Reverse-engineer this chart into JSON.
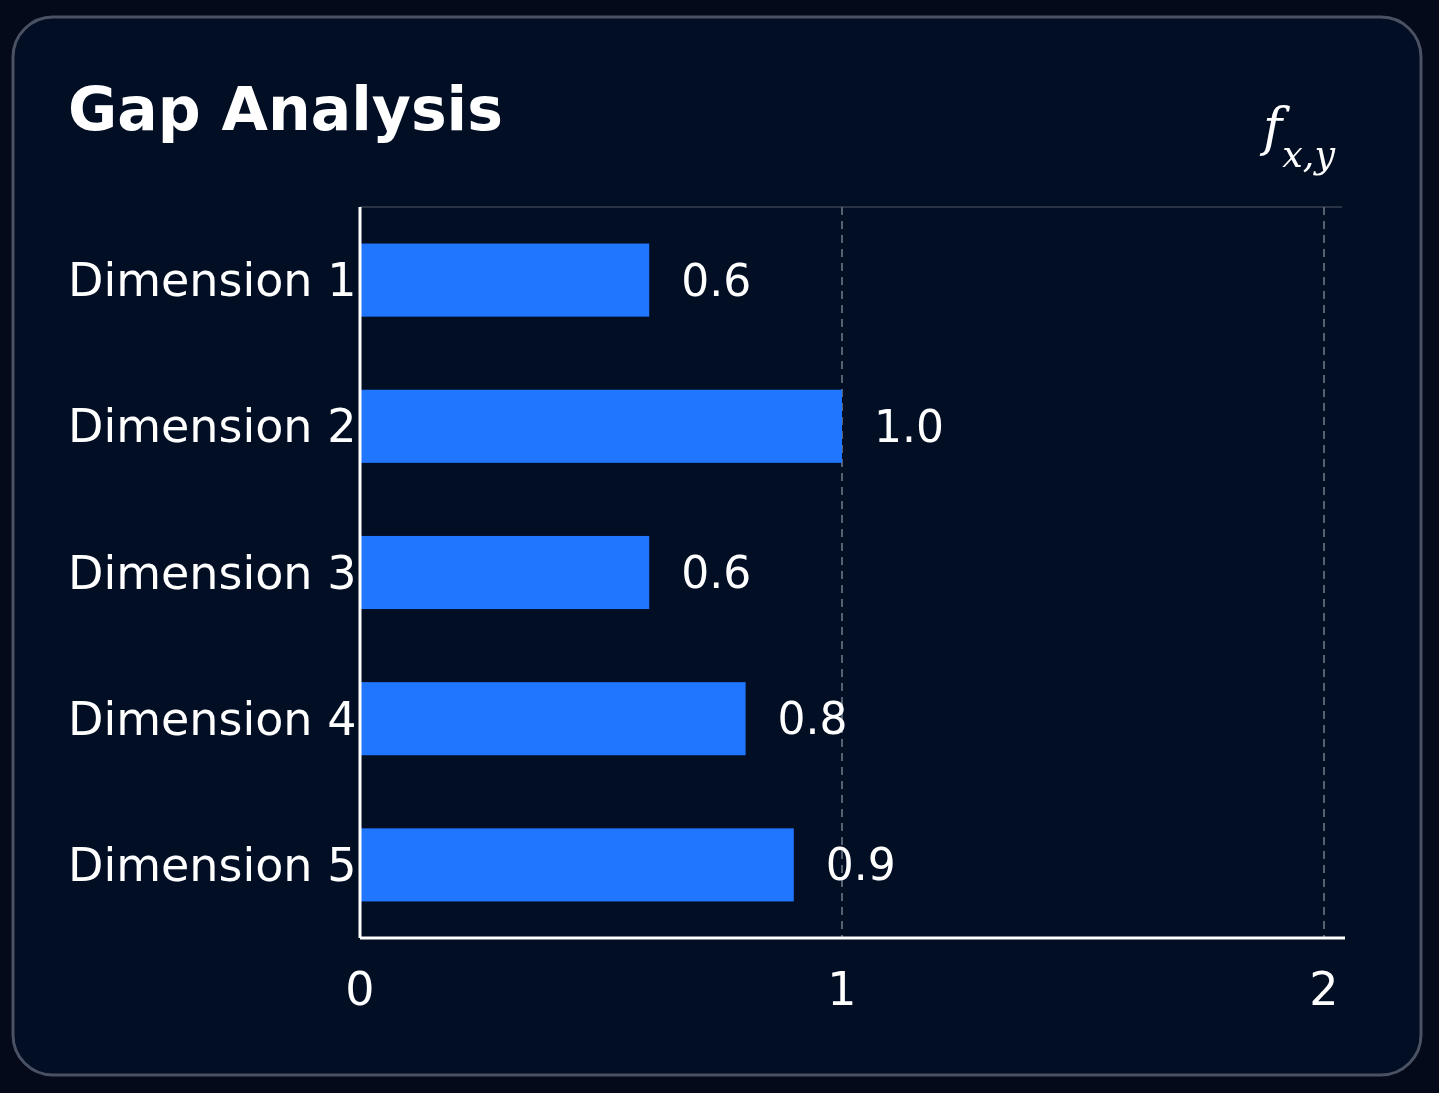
{
  "chart_data": {
    "type": "bar",
    "orientation": "horizontal",
    "title": "Gap Analysis",
    "annotations": [
      "f$_{x,y}$"
    ],
    "categories": [
      "Dimension 1",
      "Dimension 2",
      "Dimension 3",
      "Dimension 4",
      "Dimension 5"
    ],
    "values": [
      0.6,
      1.0,
      0.6,
      0.8,
      0.9
    ],
    "value_labels": [
      "0.6",
      "1.0",
      "0.6",
      "0.8",
      "0.9"
    ],
    "color": "#2176ff",
    "xlim": [
      0,
      2
    ],
    "xticks": [
      0,
      1,
      2
    ],
    "grid": "x"
  }
}
